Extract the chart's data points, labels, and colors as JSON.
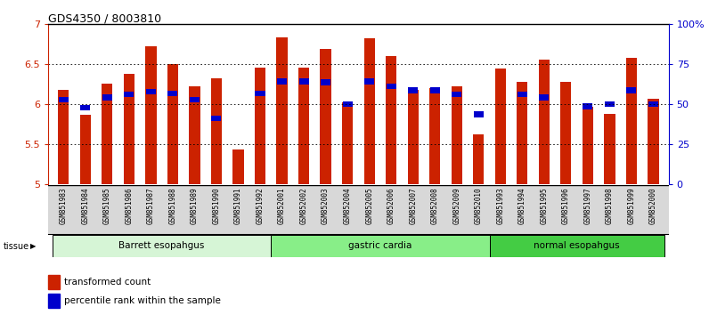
{
  "title": "GDS4350 / 8003810",
  "samples": [
    "GSM851983",
    "GSM851984",
    "GSM851985",
    "GSM851986",
    "GSM851987",
    "GSM851988",
    "GSM851989",
    "GSM851990",
    "GSM851991",
    "GSM851992",
    "GSM852001",
    "GSM852002",
    "GSM852003",
    "GSM852004",
    "GSM852005",
    "GSM852006",
    "GSM852007",
    "GSM852008",
    "GSM852009",
    "GSM852010",
    "GSM851993",
    "GSM851994",
    "GSM851995",
    "GSM851996",
    "GSM851997",
    "GSM851998",
    "GSM851999",
    "GSM852000"
  ],
  "red_values": [
    6.17,
    5.87,
    6.25,
    6.38,
    6.72,
    6.5,
    6.22,
    6.32,
    5.43,
    6.45,
    6.83,
    6.45,
    6.68,
    6.02,
    6.82,
    6.6,
    6.17,
    6.2,
    6.22,
    5.62,
    6.44,
    6.28,
    6.55,
    6.28,
    5.97,
    5.88,
    6.57,
    6.07
  ],
  "blue_values": [
    6.05,
    5.95,
    6.08,
    6.12,
    6.15,
    6.13,
    6.05,
    5.82,
    null,
    6.13,
    6.28,
    6.28,
    6.27,
    6.0,
    6.28,
    6.22,
    6.17,
    6.17,
    6.12,
    5.87,
    null,
    6.12,
    6.08,
    null,
    5.97,
    6.0,
    6.17,
    6.0
  ],
  "ylim": [
    5.0,
    7.0
  ],
  "yticks": [
    5.0,
    5.5,
    6.0,
    6.5,
    7.0
  ],
  "ytick_labels": [
    "5",
    "5.5",
    "6",
    "6.5",
    "7"
  ],
  "right_yticks": [
    0,
    25,
    50,
    75,
    100
  ],
  "right_ytick_labels": [
    "0",
    "25",
    "50",
    "75",
    "100%"
  ],
  "groups": [
    {
      "label": "Barrett esopahgus",
      "start": 0,
      "end": 9,
      "color": "#d6f5d6"
    },
    {
      "label": "gastric cardia",
      "start": 10,
      "end": 19,
      "color": "#88ee88"
    },
    {
      "label": "normal esopahgus",
      "start": 20,
      "end": 27,
      "color": "#44cc44"
    }
  ],
  "bar_color": "#cc2200",
  "blue_color": "#0000cc",
  "bg_color": "#ffffff",
  "left_axis_color": "#cc2200",
  "right_axis_color": "#0000cc",
  "bar_width": 0.5,
  "xtick_bg": "#d8d8d8",
  "legend_items": [
    {
      "color": "#cc2200",
      "label": "transformed count"
    },
    {
      "color": "#0000cc",
      "label": "percentile rank within the sample"
    }
  ]
}
